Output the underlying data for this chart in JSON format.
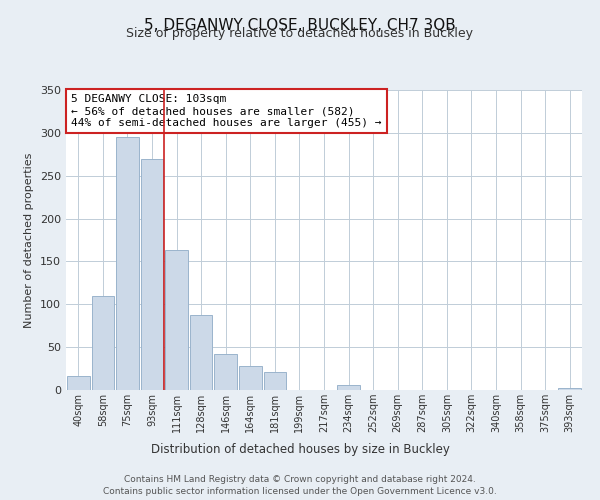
{
  "title": "5, DEGANWY CLOSE, BUCKLEY, CH7 3QB",
  "subtitle": "Size of property relative to detached houses in Buckley",
  "xlabel": "Distribution of detached houses by size in Buckley",
  "ylabel": "Number of detached properties",
  "categories": [
    "40sqm",
    "58sqm",
    "75sqm",
    "93sqm",
    "111sqm",
    "128sqm",
    "146sqm",
    "164sqm",
    "181sqm",
    "199sqm",
    "217sqm",
    "234sqm",
    "252sqm",
    "269sqm",
    "287sqm",
    "305sqm",
    "322sqm",
    "340sqm",
    "358sqm",
    "375sqm",
    "393sqm"
  ],
  "values": [
    16,
    110,
    295,
    270,
    163,
    87,
    42,
    28,
    21,
    0,
    0,
    6,
    0,
    0,
    0,
    0,
    0,
    0,
    0,
    0,
    2
  ],
  "bar_color": "#ccd9e8",
  "bar_edge_color": "#9ab4cc",
  "vline_x_index": 3.5,
  "vline_color": "#cc2222",
  "annotation_text": "5 DEGANWY CLOSE: 103sqm\n← 56% of detached houses are smaller (582)\n44% of semi-detached houses are larger (455) →",
  "annotation_box_color": "#ffffff",
  "annotation_box_edge_color": "#cc2222",
  "ylim": [
    0,
    350
  ],
  "yticks": [
    0,
    50,
    100,
    150,
    200,
    250,
    300,
    350
  ],
  "footer_line1": "Contains HM Land Registry data © Crown copyright and database right 2024.",
  "footer_line2": "Contains public sector information licensed under the Open Government Licence v3.0.",
  "bg_color": "#e8eef4",
  "plot_bg_color": "#ffffff",
  "grid_color": "#c0cdd8"
}
